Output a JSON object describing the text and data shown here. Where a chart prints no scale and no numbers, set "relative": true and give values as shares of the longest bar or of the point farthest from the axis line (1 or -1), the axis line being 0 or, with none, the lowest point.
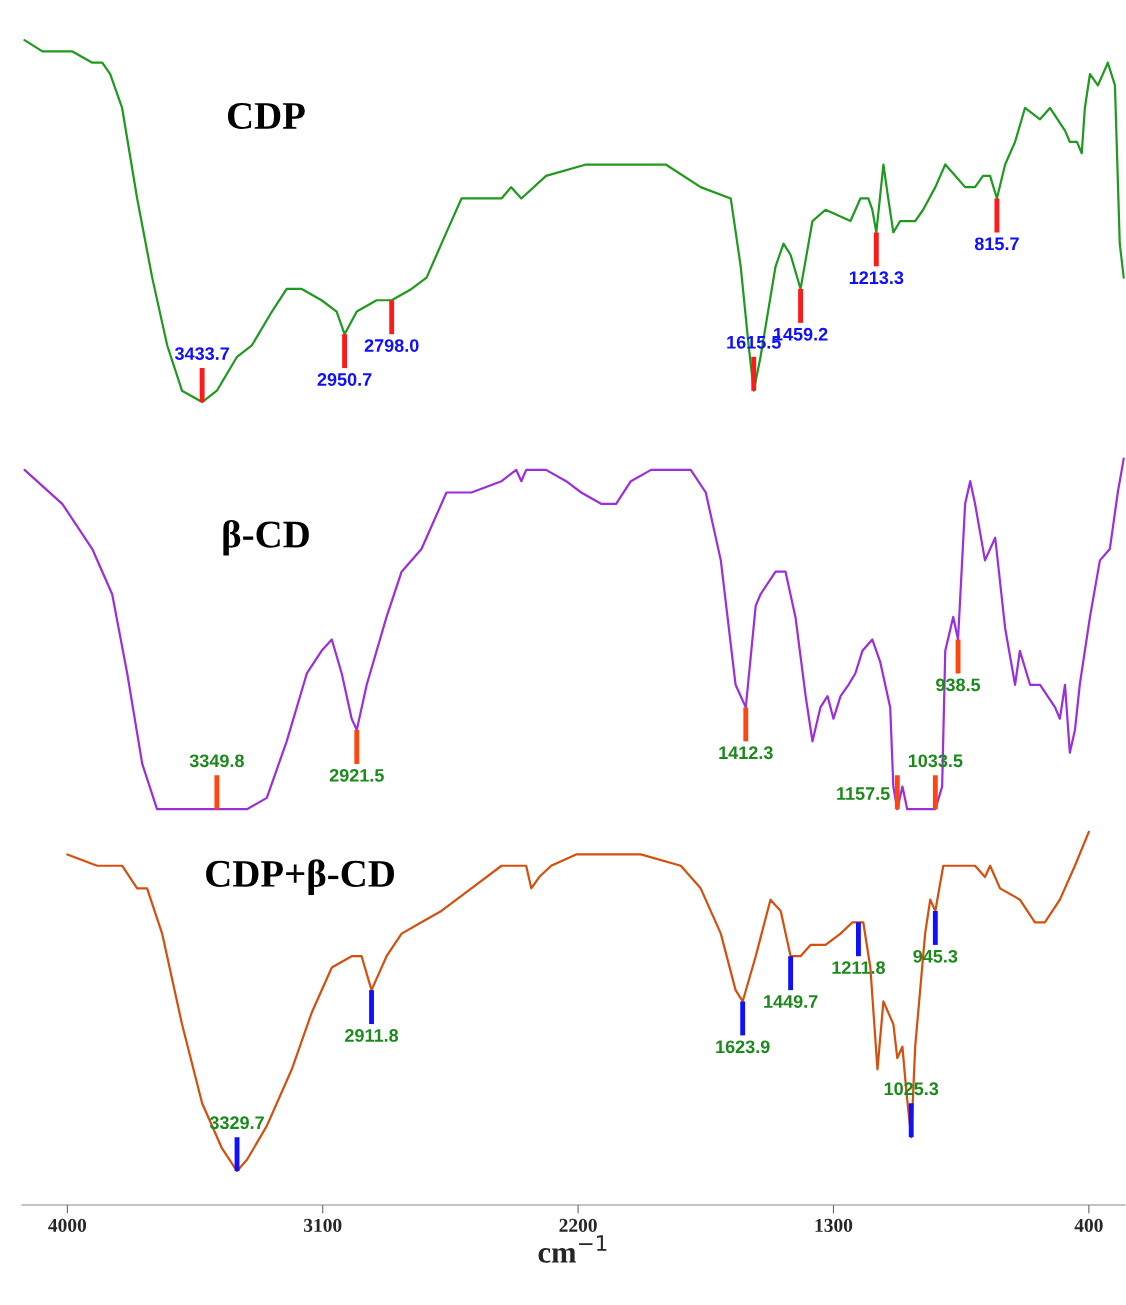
{
  "chart_data": {
    "type": "line",
    "relative": true,
    "xlabel": "cm$^{−1}$",
    "xlim": [
      4160,
      273
    ],
    "xticks": [
      4000,
      3100,
      2200,
      1300,
      400
    ],
    "grid": false,
    "legend": false,
    "series": [
      {
        "name": "CDP",
        "color": "#1f9a1f",
        "x": [
          4151,
          4088,
          3982,
          3912,
          3877,
          3849,
          3807,
          3754,
          3701,
          3648,
          3596,
          3525,
          3473,
          3402,
          3350,
          3279,
          3227,
          3174,
          3104,
          3051,
          3023,
          2980,
          2910,
          2857,
          2787,
          2734,
          2664,
          2611,
          2541,
          2470,
          2436,
          2400,
          2313,
          2172,
          2031,
          1891,
          1768,
          1662,
          1627,
          1599,
          1581,
          1557,
          1504,
          1476,
          1451,
          1416,
          1374,
          1328,
          1240,
          1205,
          1177,
          1163,
          1149,
          1124,
          1107,
          1089,
          1065,
          1029,
          1012,
          984,
          941,
          906,
          871,
          836,
          801,
          773,
          748,
          724,
          695,
          660,
          625,
          572,
          537,
          484,
          467,
          442,
          425,
          414,
          396,
          368,
          333,
          308,
          291,
          277
        ],
        "values": [
          1.0,
          0.99,
          0.99,
          0.98,
          0.98,
          0.97,
          0.94,
          0.86,
          0.79,
          0.73,
          0.69,
          0.68,
          0.69,
          0.72,
          0.73,
          0.76,
          0.78,
          0.78,
          0.77,
          0.76,
          0.74,
          0.76,
          0.77,
          0.77,
          0.78,
          0.79,
          0.83,
          0.86,
          0.86,
          0.86,
          0.87,
          0.86,
          0.88,
          0.89,
          0.89,
          0.89,
          0.87,
          0.86,
          0.8,
          0.73,
          0.69,
          0.72,
          0.8,
          0.82,
          0.81,
          0.78,
          0.84,
          0.85,
          0.84,
          0.86,
          0.86,
          0.85,
          0.83,
          0.89,
          0.86,
          0.83,
          0.84,
          0.84,
          0.84,
          0.85,
          0.87,
          0.89,
          0.88,
          0.87,
          0.87,
          0.88,
          0.88,
          0.86,
          0.89,
          0.91,
          0.94,
          0.93,
          0.94,
          0.92,
          0.91,
          0.91,
          0.9,
          0.94,
          0.97,
          0.96,
          0.98,
          0.96,
          0.82,
          0.79
        ]
      },
      {
        "name": "β-CD",
        "color": "#9b2fdc",
        "x": [
          4151,
          4018,
          3912,
          3842,
          3789,
          3736,
          3684,
          3596,
          3473,
          3367,
          3297,
          3227,
          3156,
          3104,
          3068,
          3033,
          2998,
          2980,
          2945,
          2875,
          2822,
          2752,
          2664,
          2576,
          2470,
          2418,
          2400,
          2383,
          2313,
          2242,
          2189,
          2119,
          2066,
          2014,
          1943,
          1803,
          1750,
          1697,
          1645,
          1609,
          1574,
          1557,
          1504,
          1469,
          1434,
          1398,
          1374,
          1346,
          1321,
          1300,
          1275,
          1247,
          1223,
          1198,
          1163,
          1135,
          1100,
          1089,
          1075,
          1057,
          1040,
          1012,
          977,
          941,
          917,
          906,
          878,
          861,
          836,
          818,
          801,
          766,
          730,
          695,
          660,
          643,
          607,
          572,
          519,
          502,
          484,
          467,
          449,
          432,
          396,
          361,
          326,
          298,
          277
        ],
        "values": [
          0.62,
          0.59,
          0.55,
          0.51,
          0.44,
          0.36,
          0.32,
          0.32,
          0.32,
          0.32,
          0.33,
          0.38,
          0.44,
          0.46,
          0.47,
          0.44,
          0.4,
          0.39,
          0.43,
          0.49,
          0.53,
          0.55,
          0.6,
          0.6,
          0.61,
          0.62,
          0.61,
          0.62,
          0.62,
          0.61,
          0.6,
          0.59,
          0.59,
          0.61,
          0.62,
          0.62,
          0.6,
          0.54,
          0.43,
          0.41,
          0.5,
          0.51,
          0.53,
          0.53,
          0.49,
          0.42,
          0.38,
          0.41,
          0.42,
          0.4,
          0.42,
          0.43,
          0.44,
          0.46,
          0.47,
          0.45,
          0.41,
          0.34,
          0.32,
          0.34,
          0.32,
          0.32,
          0.32,
          0.32,
          0.34,
          0.46,
          0.49,
          0.47,
          0.59,
          0.61,
          0.59,
          0.54,
          0.56,
          0.48,
          0.43,
          0.46,
          0.43,
          0.43,
          0.41,
          0.4,
          0.43,
          0.37,
          0.39,
          0.43,
          0.49,
          0.54,
          0.55,
          0.6,
          0.63
        ]
      },
      {
        "name": "CDP+β-CD",
        "color": "#d4500f",
        "x": [
          4000,
          3895,
          3807,
          3754,
          3719,
          3666,
          3596,
          3525,
          3455,
          3402,
          3367,
          3297,
          3209,
          3139,
          3068,
          2998,
          2963,
          2928,
          2875,
          2822,
          2752,
          2682,
          2576,
          2470,
          2418,
          2383,
          2365,
          2337,
          2295,
          2207,
          2119,
          1979,
          1838,
          1768,
          1697,
          1645,
          1620,
          1574,
          1522,
          1486,
          1451,
          1416,
          1381,
          1328,
          1275,
          1233,
          1212,
          1195,
          1170,
          1145,
          1124,
          1089,
          1075,
          1057,
          1043,
          1026,
          1012,
          977,
          959,
          941,
          913,
          854,
          801,
          766,
          748,
          713,
          643,
          590,
          555,
          502,
          449,
          400
        ],
        "values": [
          0.28,
          0.27,
          0.27,
          0.25,
          0.25,
          0.21,
          0.13,
          0.06,
          0.02,
          0.0,
          0.01,
          0.04,
          0.09,
          0.14,
          0.18,
          0.19,
          0.19,
          0.16,
          0.19,
          0.21,
          0.22,
          0.23,
          0.25,
          0.27,
          0.27,
          0.27,
          0.25,
          0.26,
          0.27,
          0.28,
          0.28,
          0.28,
          0.27,
          0.25,
          0.21,
          0.16,
          0.15,
          0.19,
          0.24,
          0.23,
          0.19,
          0.19,
          0.2,
          0.2,
          0.21,
          0.22,
          0.22,
          0.22,
          0.18,
          0.09,
          0.15,
          0.13,
          0.1,
          0.11,
          0.07,
          0.03,
          0.11,
          0.21,
          0.24,
          0.23,
          0.27,
          0.27,
          0.27,
          0.26,
          0.27,
          0.25,
          0.24,
          0.22,
          0.22,
          0.24,
          0.27,
          0.3
        ]
      }
    ],
    "annotations": [
      {
        "text": "3433.7",
        "x": 3525,
        "y": 0.68
      },
      {
        "text": "2950.7",
        "x": 3023,
        "y": 0.74
      },
      {
        "text": "2798.0",
        "x": 2857,
        "y": 0.77
      },
      {
        "text": "1615.5",
        "x": 1581,
        "y": 0.69
      },
      {
        "text": "1459.2",
        "x": 1416,
        "y": 0.78
      },
      {
        "text": "1213.3",
        "x": 1149,
        "y": 0.83
      },
      {
        "text": "815.7",
        "x": 724,
        "y": 0.86
      },
      {
        "text": "3349.8",
        "x": 3473,
        "y": 0.32
      },
      {
        "text": "2921.5",
        "x": 2980,
        "y": 0.39
      },
      {
        "text": "1412.3",
        "x": 1609,
        "y": 0.41
      },
      {
        "text": "1157.5",
        "x": 1075,
        "y": 0.32
      },
      {
        "text": "1033.5",
        "x": 941,
        "y": 0.32
      },
      {
        "text": "938.5",
        "x": 861,
        "y": 0.47
      },
      {
        "text": "3329.7",
        "x": 3402,
        "y": 0.0
      },
      {
        "text": "2911.8",
        "x": 2928,
        "y": 0.16
      },
      {
        "text": "1623.9",
        "x": 1620,
        "y": 0.15
      },
      {
        "text": "1449.7",
        "x": 1451,
        "y": 0.19
      },
      {
        "text": "1211.8",
        "x": 1212,
        "y": 0.22
      },
      {
        "text": "1025.3",
        "x": 1026,
        "y": 0.03
      },
      {
        "text": "945.3",
        "x": 941,
        "y": 0.23
      }
    ]
  }
}
